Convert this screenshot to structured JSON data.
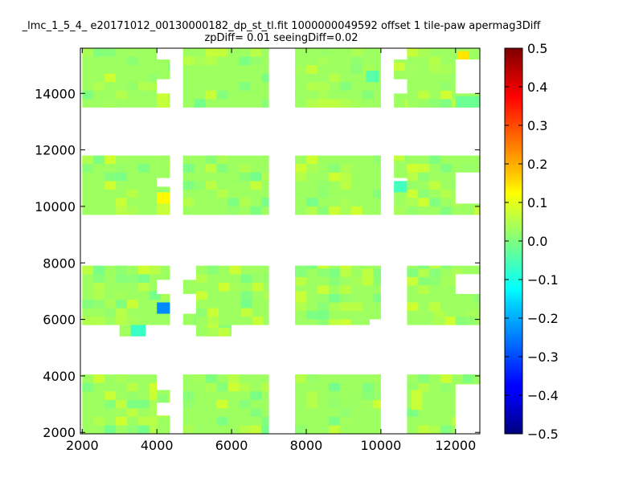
{
  "figure": {
    "title_line1": "_lmc_1_5_4_ e20171012_00130000182_dp_st_tl.fit 1000000049592 offset 1 tile-paw apermag3Diff",
    "title_line2": "zpDiff= 0.01 seeingDiff=0.02"
  },
  "chart_data": {
    "type": "heatmap",
    "title": "_lmc_1_5_4_ e20171012_00130000182_dp_st_tl.fit 1000000049592 offset 1 tile-paw apermag3Diff zpDiff= 0.01 seeingDiff=0.02",
    "xlabel": "",
    "ylabel": "",
    "xlim": [
      1950,
      12650
    ],
    "ylim": [
      1950,
      15600
    ],
    "xticks": [
      2000,
      4000,
      6000,
      8000,
      10000,
      12000
    ],
    "yticks": [
      2000,
      4000,
      6000,
      8000,
      10000,
      12000,
      14000
    ],
    "colorbar": {
      "colormap": "jet",
      "vmin": -0.5,
      "vmax": 0.5,
      "ticks": [
        0.5,
        0.4,
        0.3,
        0.2,
        0.1,
        0.0,
        -0.1,
        -0.2,
        -0.3,
        -0.4,
        -0.5
      ]
    },
    "background_value": 0.03,
    "blocks": [
      {
        "x": [
          2000,
          4000
        ],
        "y": [
          13500,
          15600
        ],
        "value": 0.03
      },
      {
        "x": [
          4000,
          4350
        ],
        "y": [
          14500,
          15200
        ],
        "value": 0.03
      },
      {
        "x": [
          4000,
          4350
        ],
        "y": [
          13500,
          14000
        ],
        "value": 0.03
      },
      {
        "x": [
          4700,
          7000
        ],
        "y": [
          13500,
          15600
        ],
        "value": 0.03
      },
      {
        "x": [
          7700,
          10000
        ],
        "y": [
          13500,
          15600
        ],
        "value": 0.03
      },
      {
        "x": [
          10350,
          10700
        ],
        "y": [
          14500,
          15200
        ],
        "value": 0.03
      },
      {
        "x": [
          10350,
          10700
        ],
        "y": [
          13500,
          14000
        ],
        "value": 0.03
      },
      {
        "x": [
          10700,
          12650
        ],
        "y": [
          13500,
          15600
        ],
        "value": 0.03
      },
      {
        "x": [
          2000,
          4000
        ],
        "y": [
          9700,
          11800
        ],
        "value": 0.03
      },
      {
        "x": [
          4000,
          4350
        ],
        "y": [
          11000,
          11800
        ],
        "value": 0.03
      },
      {
        "x": [
          4000,
          4350
        ],
        "y": [
          9700,
          10700
        ],
        "value": 0.03
      },
      {
        "x": [
          4700,
          7000
        ],
        "y": [
          9700,
          11800
        ],
        "value": 0.03
      },
      {
        "x": [
          7700,
          10000
        ],
        "y": [
          9700,
          11800
        ],
        "value": 0.03
      },
      {
        "x": [
          10350,
          10700
        ],
        "y": [
          11000,
          11800
        ],
        "value": 0.03
      },
      {
        "x": [
          10350,
          10700
        ],
        "y": [
          9700,
          10700
        ],
        "value": 0.03
      },
      {
        "x": [
          10700,
          12650
        ],
        "y": [
          9700,
          11800
        ],
        "value": 0.03
      },
      {
        "x": [
          2000,
          4350
        ],
        "y": [
          5800,
          7900
        ],
        "value": 0.03
      },
      {
        "x": [
          3000,
          3700
        ],
        "y": [
          5400,
          5800
        ],
        "value": 0.03
      },
      {
        "x": [
          4700,
          5050
        ],
        "y": [
          5800,
          6200
        ],
        "value": 0.03
      },
      {
        "x": [
          4700,
          5050
        ],
        "y": [
          6900,
          7400
        ],
        "value": 0.03
      },
      {
        "x": [
          5050,
          7000
        ],
        "y": [
          5800,
          7900
        ],
        "value": 0.03
      },
      {
        "x": [
          5050,
          6000
        ],
        "y": [
          5400,
          5800
        ],
        "value": 0.03
      },
      {
        "x": [
          7700,
          10000
        ],
        "y": [
          6000,
          7900
        ],
        "value": 0.03
      },
      {
        "x": [
          7700,
          9700
        ],
        "y": [
          5800,
          6000
        ],
        "value": 0.03
      },
      {
        "x": [
          10700,
          12650
        ],
        "y": [
          6300,
          7900
        ],
        "value": 0.03
      },
      {
        "x": [
          10700,
          11100
        ],
        "y": [
          5800,
          6300
        ],
        "value": 0.03
      },
      {
        "x": [
          11100,
          12650
        ],
        "y": [
          5800,
          6300
        ],
        "value": 0.03
      },
      {
        "x": [
          2000,
          4000
        ],
        "y": [
          1950,
          4050
        ],
        "value": 0.03
      },
      {
        "x": [
          4000,
          4350
        ],
        "y": [
          3050,
          3500
        ],
        "value": 0.03
      },
      {
        "x": [
          4000,
          4350
        ],
        "y": [
          1950,
          2600
        ],
        "value": 0.03
      },
      {
        "x": [
          4700,
          7000
        ],
        "y": [
          1950,
          4050
        ],
        "value": 0.03
      },
      {
        "x": [
          7700,
          10000
        ],
        "y": [
          1950,
          4050
        ],
        "value": 0.03
      },
      {
        "x": [
          10700,
          12650
        ],
        "y": [
          1950,
          4050
        ],
        "value": 0.03
      }
    ],
    "gaps": [
      {
        "x": [
          4350,
          4700
        ],
        "y": [
          6000,
          7400
        ]
      },
      {
        "x": [
          4350,
          4700
        ],
        "y": [
          2600,
          3500
        ]
      },
      {
        "x": [
          4000,
          4350
        ],
        "y": [
          6900,
          7400
        ]
      },
      {
        "x": [
          4000,
          4350
        ],
        "y": [
          14000,
          14500
        ]
      },
      {
        "x": [
          4000,
          4350
        ],
        "y": [
          10700,
          11000
        ]
      },
      {
        "x": [
          10350,
          10700
        ],
        "y": [
          14000,
          14500
        ]
      },
      {
        "x": [
          10350,
          10700
        ],
        "y": [
          10700,
          11000
        ]
      },
      {
        "x": [
          4000,
          4350
        ],
        "y": [
          2600,
          3050
        ]
      },
      {
        "x": [
          4000,
          4350
        ],
        "y": [
          3500,
          4050
        ]
      },
      {
        "x": [
          12000,
          12650
        ],
        "y": [
          6900,
          7600
        ]
      },
      {
        "x": [
          12000,
          12650
        ],
        "y": [
          10100,
          11200
        ]
      },
      {
        "x": [
          12000,
          12650
        ],
        "y": [
          14000,
          15200
        ]
      },
      {
        "x": [
          12000,
          12650
        ],
        "y": [
          1950,
          3700
        ]
      },
      {
        "x": [
          9700,
          10000
        ],
        "y": [
          5800,
          6000
        ]
      },
      {
        "x": [
          10000,
          10350
        ],
        "y": [
          1950,
          4050
        ]
      }
    ],
    "highlights": [
      {
        "x": [
          12050,
          12350
        ],
        "y": [
          15200,
          15500
        ],
        "value": 0.15
      },
      {
        "x": [
          4000,
          4350
        ],
        "y": [
          10100,
          10500
        ],
        "value": 0.13
      },
      {
        "x": [
          4000,
          4350
        ],
        "y": [
          9700,
          10100
        ],
        "value": 0.07
      },
      {
        "x": [
          4000,
          4350
        ],
        "y": [
          6200,
          6600
        ],
        "value": -0.24
      },
      {
        "x": [
          3300,
          3700
        ],
        "y": [
          5400,
          5800
        ],
        "value": -0.07
      },
      {
        "x": [
          10350,
          10700
        ],
        "y": [
          10500,
          10900
        ],
        "value": -0.06
      },
      {
        "x": [
          9600,
          9950
        ],
        "y": [
          14400,
          14800
        ],
        "value": -0.04
      },
      {
        "x": [
          7700,
          8000
        ],
        "y": [
          6600,
          7000
        ],
        "value": 0.07
      },
      {
        "x": [
          12000,
          12650
        ],
        "y": [
          13500,
          13900
        ],
        "value": -0.02
      },
      {
        "x": [
          10800,
          11100
        ],
        "y": [
          2800,
          3500
        ],
        "value": 0.07
      }
    ]
  }
}
